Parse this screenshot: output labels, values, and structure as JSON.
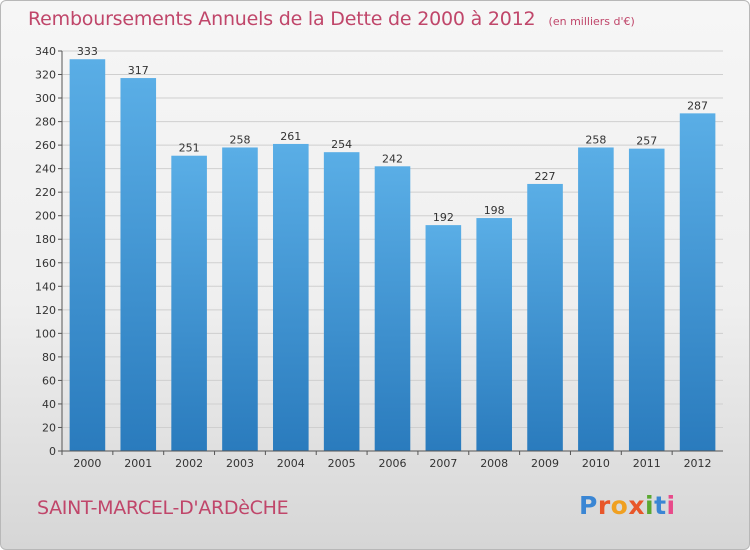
{
  "title": "Remboursements Annuels de la Dette de 2000 à 2012",
  "subtitle": "(en milliers d'€)",
  "commune": "SAINT-MARCEL-D'ARDèCHE",
  "logo": {
    "text": "Proxiti",
    "letter_colors": [
      "#3a86d4",
      "#e8562a",
      "#f0a020",
      "#e8562a",
      "#5aa830",
      "#3a86d4",
      "#e84a8a"
    ]
  },
  "colors": {
    "bar_top": "#5aaee6",
    "bar_bottom": "#2a7bbd",
    "grid": "#cfcfcf",
    "title": "#c0466a"
  },
  "chart_data": {
    "type": "bar",
    "title": "Remboursements Annuels de la Dette de 2000 à 2012",
    "subtitle": "(en milliers d'€)",
    "xlabel": "",
    "ylabel": "",
    "categories": [
      "2000",
      "2001",
      "2002",
      "2003",
      "2004",
      "2005",
      "2006",
      "2007",
      "2008",
      "2009",
      "2010",
      "2011",
      "2012"
    ],
    "values": [
      333,
      317,
      251,
      258,
      261,
      254,
      242,
      192,
      198,
      227,
      258,
      257,
      287
    ],
    "ylim": [
      0,
      340
    ],
    "yticks": [
      0,
      20,
      40,
      60,
      80,
      100,
      120,
      140,
      160,
      180,
      200,
      220,
      240,
      260,
      280,
      300,
      320,
      340
    ],
    "grid": true,
    "legend": "none"
  }
}
